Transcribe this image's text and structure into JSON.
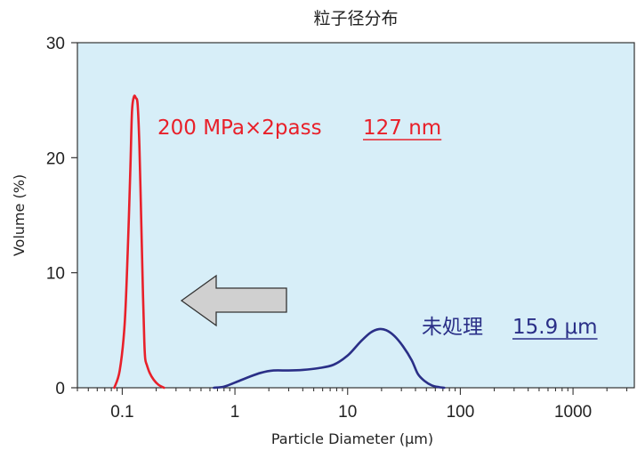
{
  "chart_data": {
    "type": "line",
    "title": "粒子径分布",
    "xlabel": "Particle Diameter (μm)",
    "ylabel": "Volume (%)",
    "x_scale": "log",
    "xlim": [
      0.04,
      3500
    ],
    "ylim": [
      0,
      30
    ],
    "x_ticks": [
      0.1,
      1,
      10,
      100,
      1000
    ],
    "x_tick_labels": [
      "0.1",
      "1",
      "10",
      "100",
      "1000"
    ],
    "y_ticks": [
      0,
      10,
      20,
      30
    ],
    "y_tick_labels": [
      "0",
      "10",
      "20",
      "30"
    ],
    "grid": false,
    "plot_background": "#d7eef8",
    "series": [
      {
        "color": "#e8202a",
        "x": [
          0.085,
          0.095,
          0.105,
          0.112,
          0.118,
          0.122,
          0.127,
          0.132,
          0.137,
          0.142,
          0.147,
          0.152,
          0.157,
          0.16,
          0.165,
          0.175,
          0.19,
          0.21,
          0.235
        ],
        "y": [
          0,
          1.5,
          5.5,
          12,
          19,
          24,
          25.3,
          25.2,
          24.6,
          21,
          15,
          9,
          4,
          2.5,
          2,
          1.3,
          0.7,
          0.25,
          0
        ]
      },
      {
        "color": "#2a2f87",
        "x": [
          0.65,
          0.8,
          1.0,
          1.3,
          1.7,
          2.2,
          3.0,
          4.0,
          5.5,
          7.5,
          10,
          13,
          16,
          19,
          22,
          26,
          31,
          37,
          42,
          48,
          56,
          65,
          72
        ],
        "y": [
          0,
          0.1,
          0.45,
          0.9,
          1.3,
          1.5,
          1.5,
          1.55,
          1.7,
          2.0,
          2.8,
          4.0,
          4.8,
          5.1,
          5.0,
          4.5,
          3.6,
          2.4,
          1.2,
          0.6,
          0.2,
          0.05,
          0
        ]
      }
    ],
    "annotations": [
      {
        "text": "200 MPa×2pass",
        "color": "#e8202a"
      },
      {
        "text": "127 nm",
        "color": "#e8202a",
        "underline": true
      },
      {
        "text": "未処理",
        "color": "#2a2f87"
      },
      {
        "text": "15.9 μm",
        "color": "#2a2f87",
        "underline": true
      }
    ],
    "arrow": {
      "direction": "left",
      "fill": "#d0d0d0",
      "stroke": "#333333"
    }
  }
}
